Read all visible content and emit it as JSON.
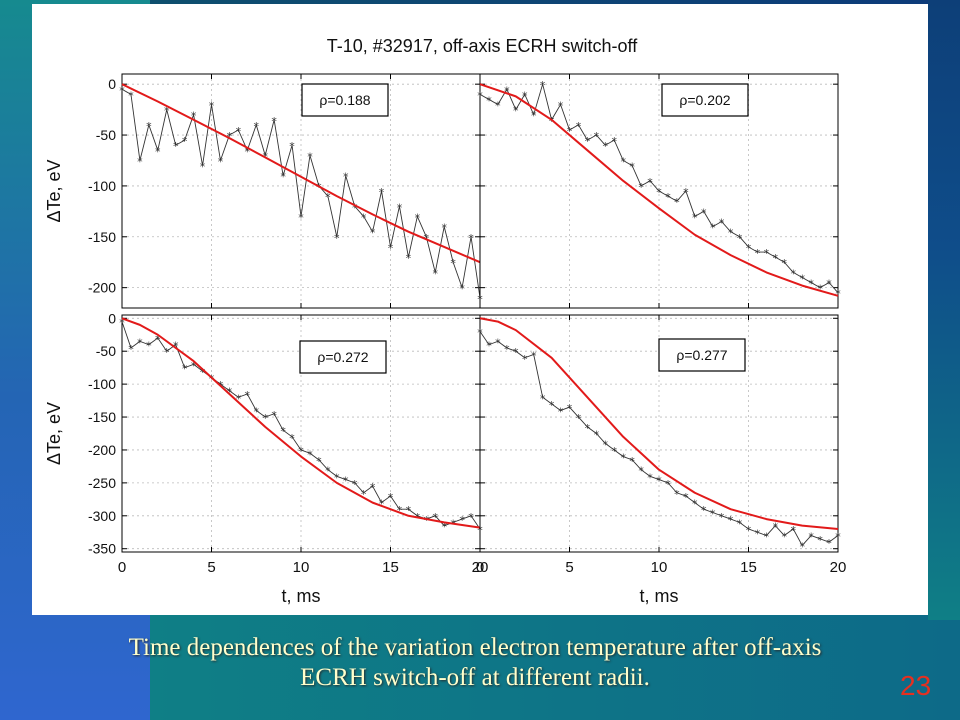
{
  "slide": {
    "caption_line1": "Time dependences of the variation electron temperature after off-axis",
    "caption_line2": "ECRH switch-off at different radii.",
    "slide_number": "23",
    "caption_color": "#ffffcc",
    "slide_number_color": "#e53020"
  },
  "chart_data": {
    "title": "T-10, #32917, off-axis ECRH switch-off",
    "xlabel": "t, ms",
    "ylabel": "ΔTe, eV",
    "fit_color": "#e21a1a",
    "data_color": "#333333",
    "panels": [
      {
        "type": "line",
        "label": "ρ=0.188",
        "xlim": [
          0,
          20
        ],
        "ylim": [
          -220,
          10
        ],
        "yticks": [
          0,
          -50,
          -100,
          -150,
          -200
        ],
        "xticks": [
          0,
          5,
          10,
          15,
          20
        ],
        "fit": {
          "x": [
            0,
            2,
            4,
            6,
            8,
            10,
            12,
            14,
            16,
            18,
            20
          ],
          "y": [
            0,
            -17,
            -35,
            -53,
            -72,
            -91,
            -110,
            -128,
            -145,
            -160,
            -175
          ]
        },
        "series": {
          "x": [
            0.0,
            0.5,
            1.0,
            1.5,
            2.0,
            2.5,
            3.0,
            3.5,
            4.0,
            4.5,
            5.0,
            5.5,
            6.0,
            6.5,
            7.0,
            7.5,
            8.0,
            8.5,
            9.0,
            9.5,
            10.0,
            10.5,
            11.0,
            11.5,
            12.0,
            12.5,
            13.0,
            13.5,
            14.0,
            14.5,
            15.0,
            15.5,
            16.0,
            16.5,
            17.0,
            17.5,
            18.0,
            18.5,
            19.0,
            19.5,
            20.0
          ],
          "y": [
            -5,
            -10,
            -75,
            -40,
            -65,
            -25,
            -60,
            -55,
            -30,
            -80,
            -20,
            -75,
            -50,
            -45,
            -65,
            -40,
            -70,
            -35,
            -90,
            -60,
            -130,
            -70,
            -100,
            -110,
            -150,
            -90,
            -120,
            -130,
            -145,
            -105,
            -160,
            -120,
            -170,
            -130,
            -150,
            -185,
            -140,
            -175,
            -200,
            -150,
            -210
          ]
        }
      },
      {
        "type": "line",
        "label": "ρ=0.202",
        "xlim": [
          0,
          20
        ],
        "ylim": [
          -220,
          10
        ],
        "yticks": [
          0,
          -50,
          -100,
          -150,
          -200
        ],
        "xticks": [
          0,
          5,
          10,
          15,
          20
        ],
        "fit": {
          "x": [
            0,
            2,
            4,
            6,
            8,
            10,
            12,
            14,
            16,
            18,
            20
          ],
          "y": [
            0,
            -12,
            -35,
            -65,
            -95,
            -122,
            -148,
            -168,
            -185,
            -198,
            -208
          ]
        },
        "series": {
          "x": [
            0.0,
            0.5,
            1.0,
            1.5,
            2.0,
            2.5,
            3.0,
            3.5,
            4.0,
            4.5,
            5.0,
            5.5,
            6.0,
            6.5,
            7.0,
            7.5,
            8.0,
            8.5,
            9.0,
            9.5,
            10.0,
            10.5,
            11.0,
            11.5,
            12.0,
            12.5,
            13.0,
            13.5,
            14.0,
            14.5,
            15.0,
            15.5,
            16.0,
            16.5,
            17.0,
            17.5,
            18.0,
            18.5,
            19.0,
            19.5,
            20.0
          ],
          "y": [
            -10,
            -15,
            -20,
            -5,
            -25,
            -10,
            -30,
            0,
            -35,
            -20,
            -45,
            -40,
            -55,
            -50,
            -60,
            -55,
            -75,
            -80,
            -100,
            -95,
            -105,
            -110,
            -115,
            -105,
            -130,
            -125,
            -140,
            -135,
            -145,
            -150,
            -160,
            -165,
            -165,
            -170,
            -175,
            -185,
            -190,
            -195,
            -200,
            -195,
            -205
          ]
        }
      },
      {
        "type": "line",
        "label": "ρ=0.272",
        "xlim": [
          0,
          20
        ],
        "ylim": [
          -355,
          5
        ],
        "yticks": [
          0,
          -50,
          -100,
          -150,
          -200,
          -250,
          -300,
          -350
        ],
        "xticks": [
          0,
          5,
          10,
          15,
          20
        ],
        "fit": {
          "x": [
            0,
            1,
            2,
            4,
            6,
            8,
            10,
            12,
            14,
            16,
            18,
            20
          ],
          "y": [
            0,
            -10,
            -25,
            -65,
            -115,
            -165,
            -210,
            -250,
            -280,
            -300,
            -310,
            -318
          ]
        },
        "series": {
          "x": [
            0.0,
            0.5,
            1.0,
            1.5,
            2.0,
            2.5,
            3.0,
            3.5,
            4.0,
            4.5,
            5.0,
            5.5,
            6.0,
            6.5,
            7.0,
            7.5,
            8.0,
            8.5,
            9.0,
            9.5,
            10.0,
            10.5,
            11.0,
            11.5,
            12.0,
            12.5,
            13.0,
            13.5,
            14.0,
            14.5,
            15.0,
            15.5,
            16.0,
            16.5,
            17.0,
            17.5,
            18.0,
            18.5,
            19.0,
            19.5,
            20.0
          ],
          "y": [
            -5,
            -45,
            -35,
            -40,
            -30,
            -50,
            -40,
            -75,
            -70,
            -80,
            -90,
            -100,
            -110,
            -120,
            -115,
            -140,
            -150,
            -145,
            -170,
            -180,
            -200,
            -205,
            -215,
            -230,
            -240,
            -245,
            -250,
            -265,
            -255,
            -280,
            -270,
            -290,
            -290,
            -300,
            -305,
            -300,
            -315,
            -310,
            -305,
            -300,
            -320
          ]
        }
      },
      {
        "type": "line",
        "label": "ρ=0.277",
        "xlim": [
          0,
          20
        ],
        "ylim": [
          -355,
          5
        ],
        "yticks": [
          0,
          -50,
          -100,
          -150,
          -200,
          -250,
          -300,
          -350
        ],
        "xticks": [
          0,
          5,
          10,
          15,
          20
        ],
        "fit": {
          "x": [
            0,
            1,
            2,
            4,
            6,
            8,
            10,
            12,
            14,
            16,
            18,
            20
          ],
          "y": [
            0,
            -5,
            -18,
            -60,
            -120,
            -180,
            -230,
            -265,
            -290,
            -305,
            -315,
            -320
          ]
        },
        "series": {
          "x": [
            0.0,
            0.5,
            1.0,
            1.5,
            2.0,
            2.5,
            3.0,
            3.5,
            4.0,
            4.5,
            5.0,
            5.5,
            6.0,
            6.5,
            7.0,
            7.5,
            8.0,
            8.5,
            9.0,
            9.5,
            10.0,
            10.5,
            11.0,
            11.5,
            12.0,
            12.5,
            13.0,
            13.5,
            14.0,
            14.5,
            15.0,
            15.5,
            16.0,
            16.5,
            17.0,
            17.5,
            18.0,
            18.5,
            19.0,
            19.5,
            20.0
          ],
          "y": [
            -20,
            -40,
            -35,
            -45,
            -50,
            -60,
            -55,
            -120,
            -130,
            -140,
            -135,
            -150,
            -165,
            -175,
            -190,
            -200,
            -210,
            -215,
            -230,
            -240,
            -245,
            -250,
            -265,
            -270,
            -280,
            -290,
            -295,
            -300,
            -305,
            -310,
            -320,
            -325,
            -330,
            -315,
            -330,
            -320,
            -345,
            -330,
            -335,
            -340,
            -330
          ]
        }
      }
    ]
  }
}
